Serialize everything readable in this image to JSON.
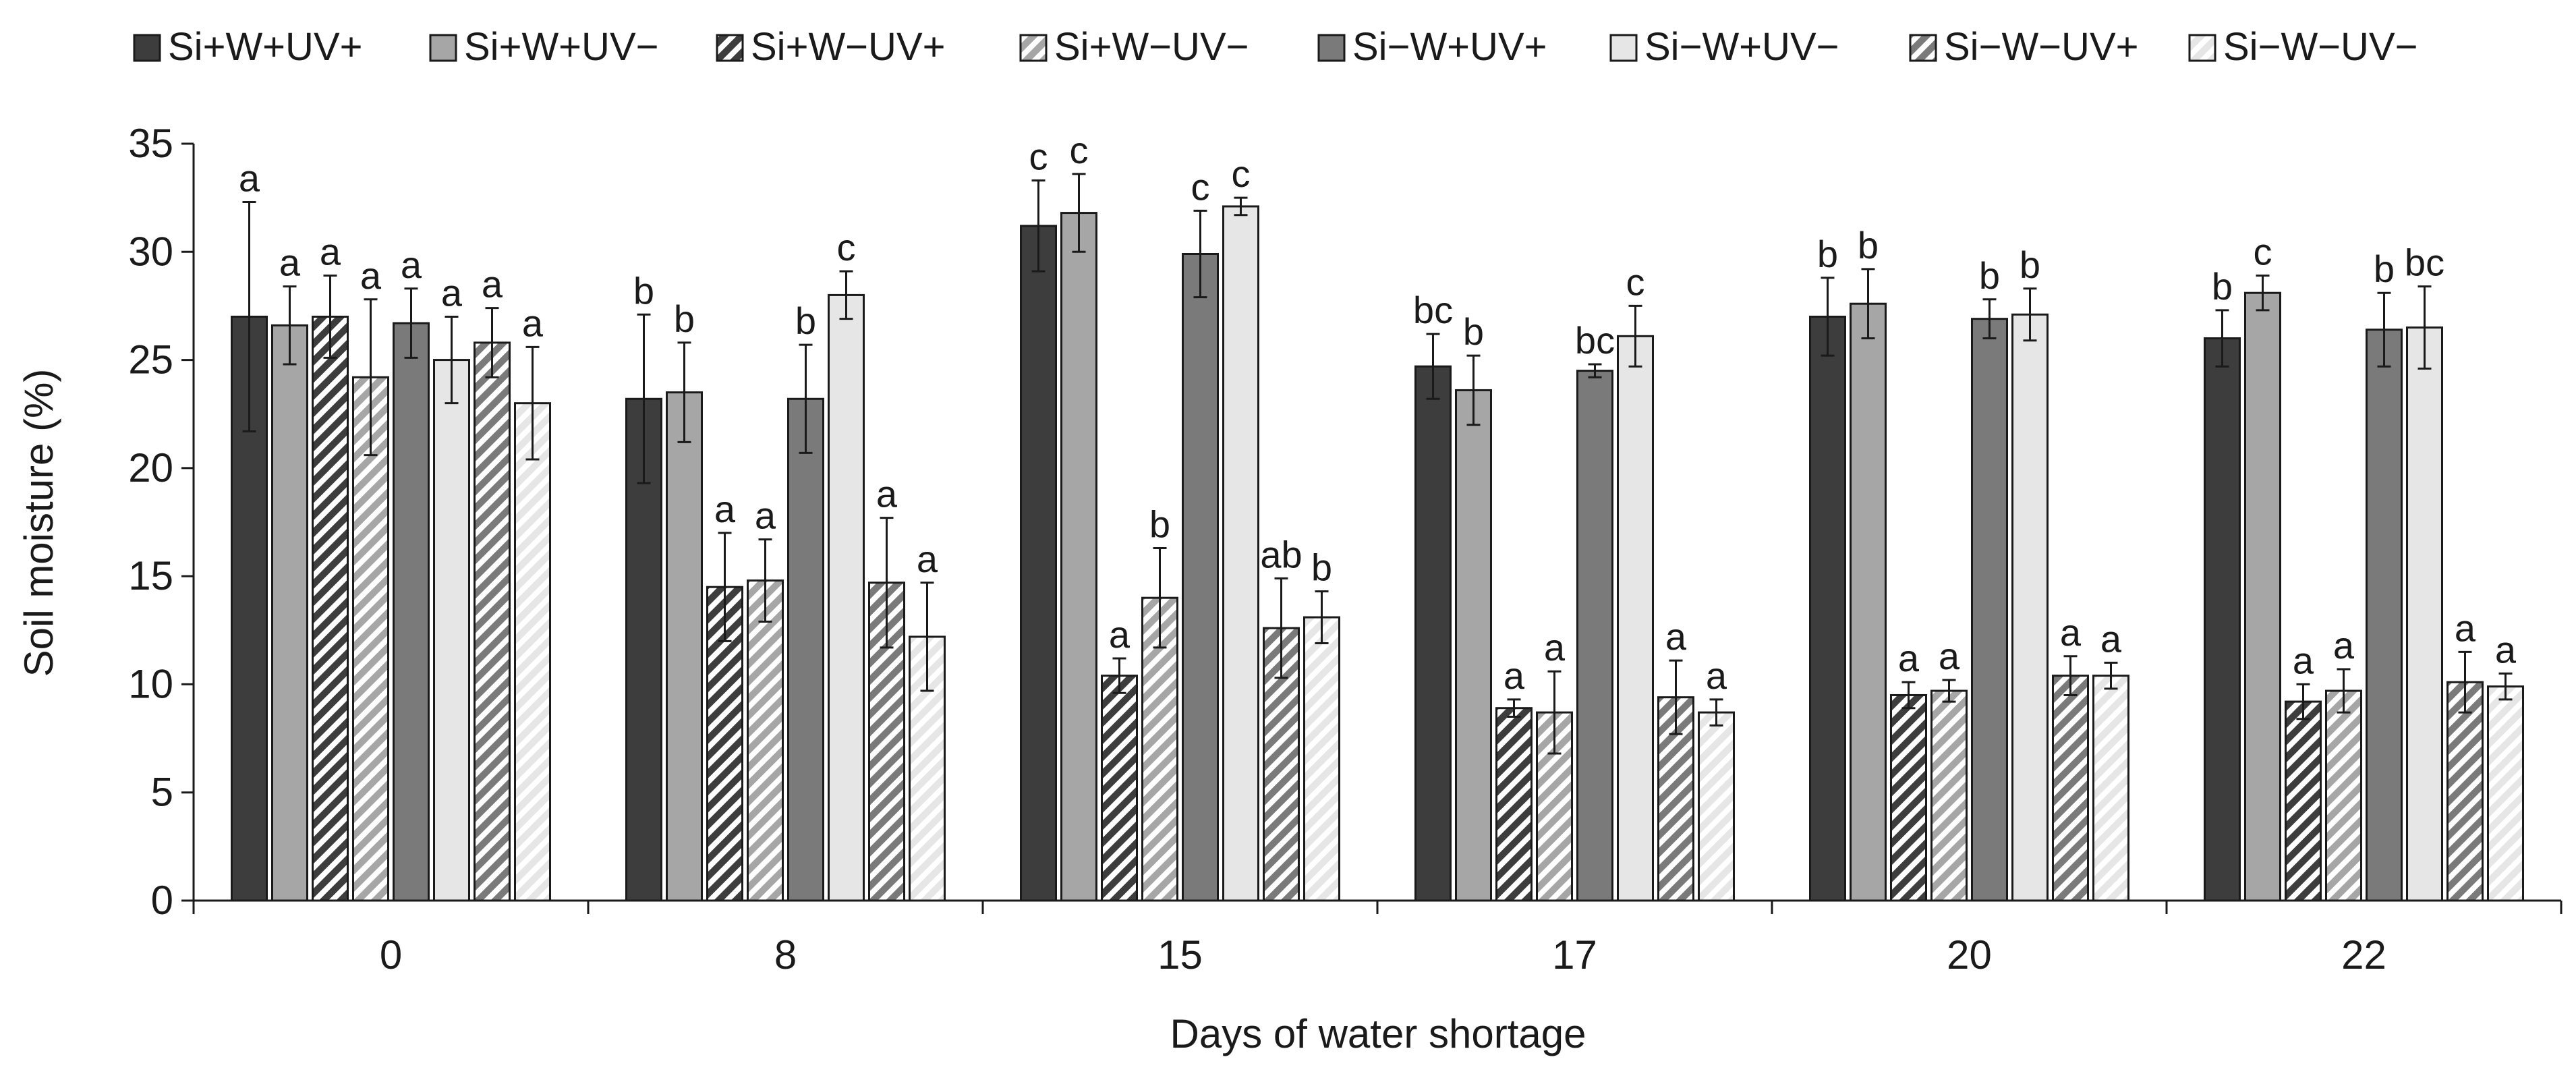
{
  "chart_data": {
    "type": "bar",
    "title": "",
    "xlabel": "Days of water shortage",
    "ylabel": "Soil moisture (%)",
    "ylim": [
      0,
      35
    ],
    "yticks": [
      0,
      5,
      10,
      15,
      20,
      25,
      30,
      35
    ],
    "grid": false,
    "legend_position": "top",
    "categories": [
      "0",
      "8",
      "15",
      "17",
      "20",
      "22"
    ],
    "series": [
      {
        "name": "Si+W+UV+",
        "style": {
          "fill": "#3d3d3d",
          "hatch": false
        },
        "values": [
          27.0,
          23.2,
          31.2,
          24.7,
          27.0,
          26.0
        ],
        "errors": [
          5.3,
          3.9,
          2.1,
          1.5,
          1.8,
          1.3
        ],
        "labels": [
          "a",
          "b",
          "c",
          "bc",
          "b",
          "b"
        ]
      },
      {
        "name": "Si+W+UV−",
        "style": {
          "fill": "#a6a6a6",
          "hatch": false
        },
        "values": [
          26.6,
          23.5,
          31.8,
          23.6,
          27.6,
          28.1
        ],
        "errors": [
          1.8,
          2.3,
          1.8,
          1.6,
          1.6,
          0.8
        ],
        "labels": [
          "a",
          "b",
          "c",
          "b",
          "b",
          "c"
        ]
      },
      {
        "name": "Si+W−UV+",
        "style": {
          "fill": "#3d3d3d",
          "hatch": true
        },
        "values": [
          27.0,
          14.5,
          10.4,
          8.9,
          9.5,
          9.2
        ],
        "errors": [
          1.9,
          2.5,
          0.8,
          0.4,
          0.6,
          0.8
        ],
        "labels": [
          "a",
          "a",
          "a",
          "a",
          "a",
          "a"
        ]
      },
      {
        "name": "Si+W−UV−",
        "style": {
          "fill": "#a6a6a6",
          "hatch": true
        },
        "values": [
          24.2,
          14.8,
          14.0,
          8.7,
          9.7,
          9.7
        ],
        "errors": [
          3.6,
          1.9,
          2.3,
          1.9,
          0.5,
          1.0
        ],
        "labels": [
          "a",
          "a",
          "b",
          "a",
          "a",
          "a"
        ]
      },
      {
        "name": "Si−W+UV+",
        "style": {
          "fill": "#7a7a7a",
          "hatch": false
        },
        "values": [
          26.7,
          23.2,
          29.9,
          24.5,
          26.9,
          26.4
        ],
        "errors": [
          1.6,
          2.5,
          2.0,
          0.3,
          0.9,
          1.7
        ],
        "labels": [
          "a",
          "b",
          "c",
          "bc",
          "b",
          "b"
        ]
      },
      {
        "name": "Si−W+UV−",
        "style": {
          "fill": "#e6e6e6",
          "hatch": false
        },
        "values": [
          25.0,
          28.0,
          32.1,
          26.1,
          27.1,
          26.5
        ],
        "errors": [
          2.0,
          1.1,
          0.4,
          1.4,
          1.2,
          1.9
        ],
        "labels": [
          "a",
          "c",
          "c",
          "c",
          "b",
          "bc"
        ]
      },
      {
        "name": "Si−W−UV+",
        "style": {
          "fill": "#7a7a7a",
          "hatch": true
        },
        "values": [
          25.8,
          14.7,
          12.6,
          9.4,
          10.4,
          10.1
        ],
        "errors": [
          1.6,
          3.0,
          2.3,
          1.7,
          0.9,
          1.4
        ],
        "labels": [
          "a",
          "a",
          "ab",
          "a",
          "a",
          "a"
        ]
      },
      {
        "name": "Si−W−UV−",
        "style": {
          "fill": "#e6e6e6",
          "hatch": true
        },
        "values": [
          23.0,
          12.2,
          13.1,
          8.7,
          10.4,
          9.9
        ],
        "errors": [
          2.6,
          2.5,
          1.2,
          0.6,
          0.6,
          0.6
        ],
        "labels": [
          "a",
          "a",
          "b",
          "a",
          "a",
          "a"
        ]
      }
    ]
  }
}
